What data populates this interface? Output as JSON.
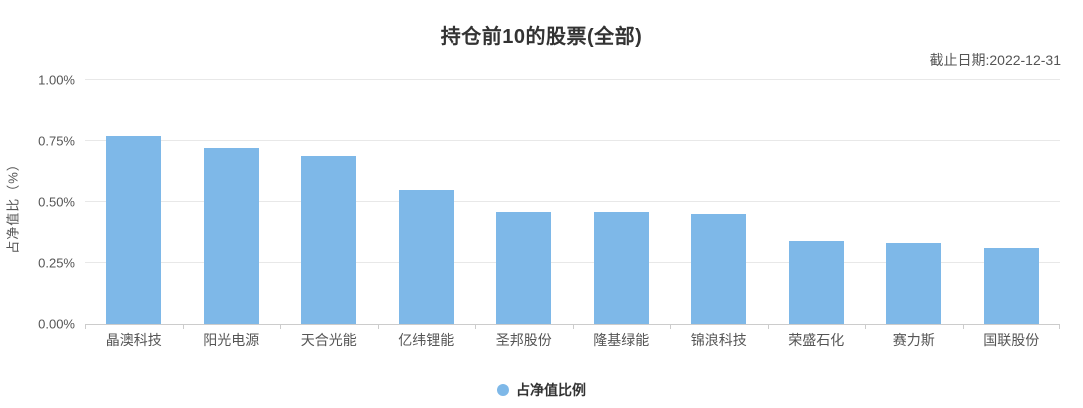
{
  "chart_data": {
    "type": "bar",
    "title": "持仓前10的股票(全部)",
    "date_note": "截止日期:2022-12-31",
    "ylabel": "占净值比（%）",
    "categories": [
      "晶澳科技",
      "阳光电源",
      "天合光能",
      "亿纬锂能",
      "圣邦股份",
      "隆基绿能",
      "锦浪科技",
      "荣盛石化",
      "赛力斯",
      "国联股份"
    ],
    "series": [
      {
        "name": "占净值比例",
        "values": [
          0.77,
          0.72,
          0.69,
          0.55,
          0.46,
          0.46,
          0.45,
          0.34,
          0.33,
          0.31
        ]
      }
    ],
    "ylim": [
      0,
      1.0
    ],
    "yticks": [
      0,
      0.25,
      0.5,
      0.75,
      1.0
    ],
    "ytick_labels": [
      "0.00%",
      "0.25%",
      "0.50%",
      "0.75%",
      "1.00%"
    ],
    "legend_label": "占净值比例",
    "legend_position": "bottom",
    "grid": true,
    "bar_color": "#7EB8E8"
  }
}
